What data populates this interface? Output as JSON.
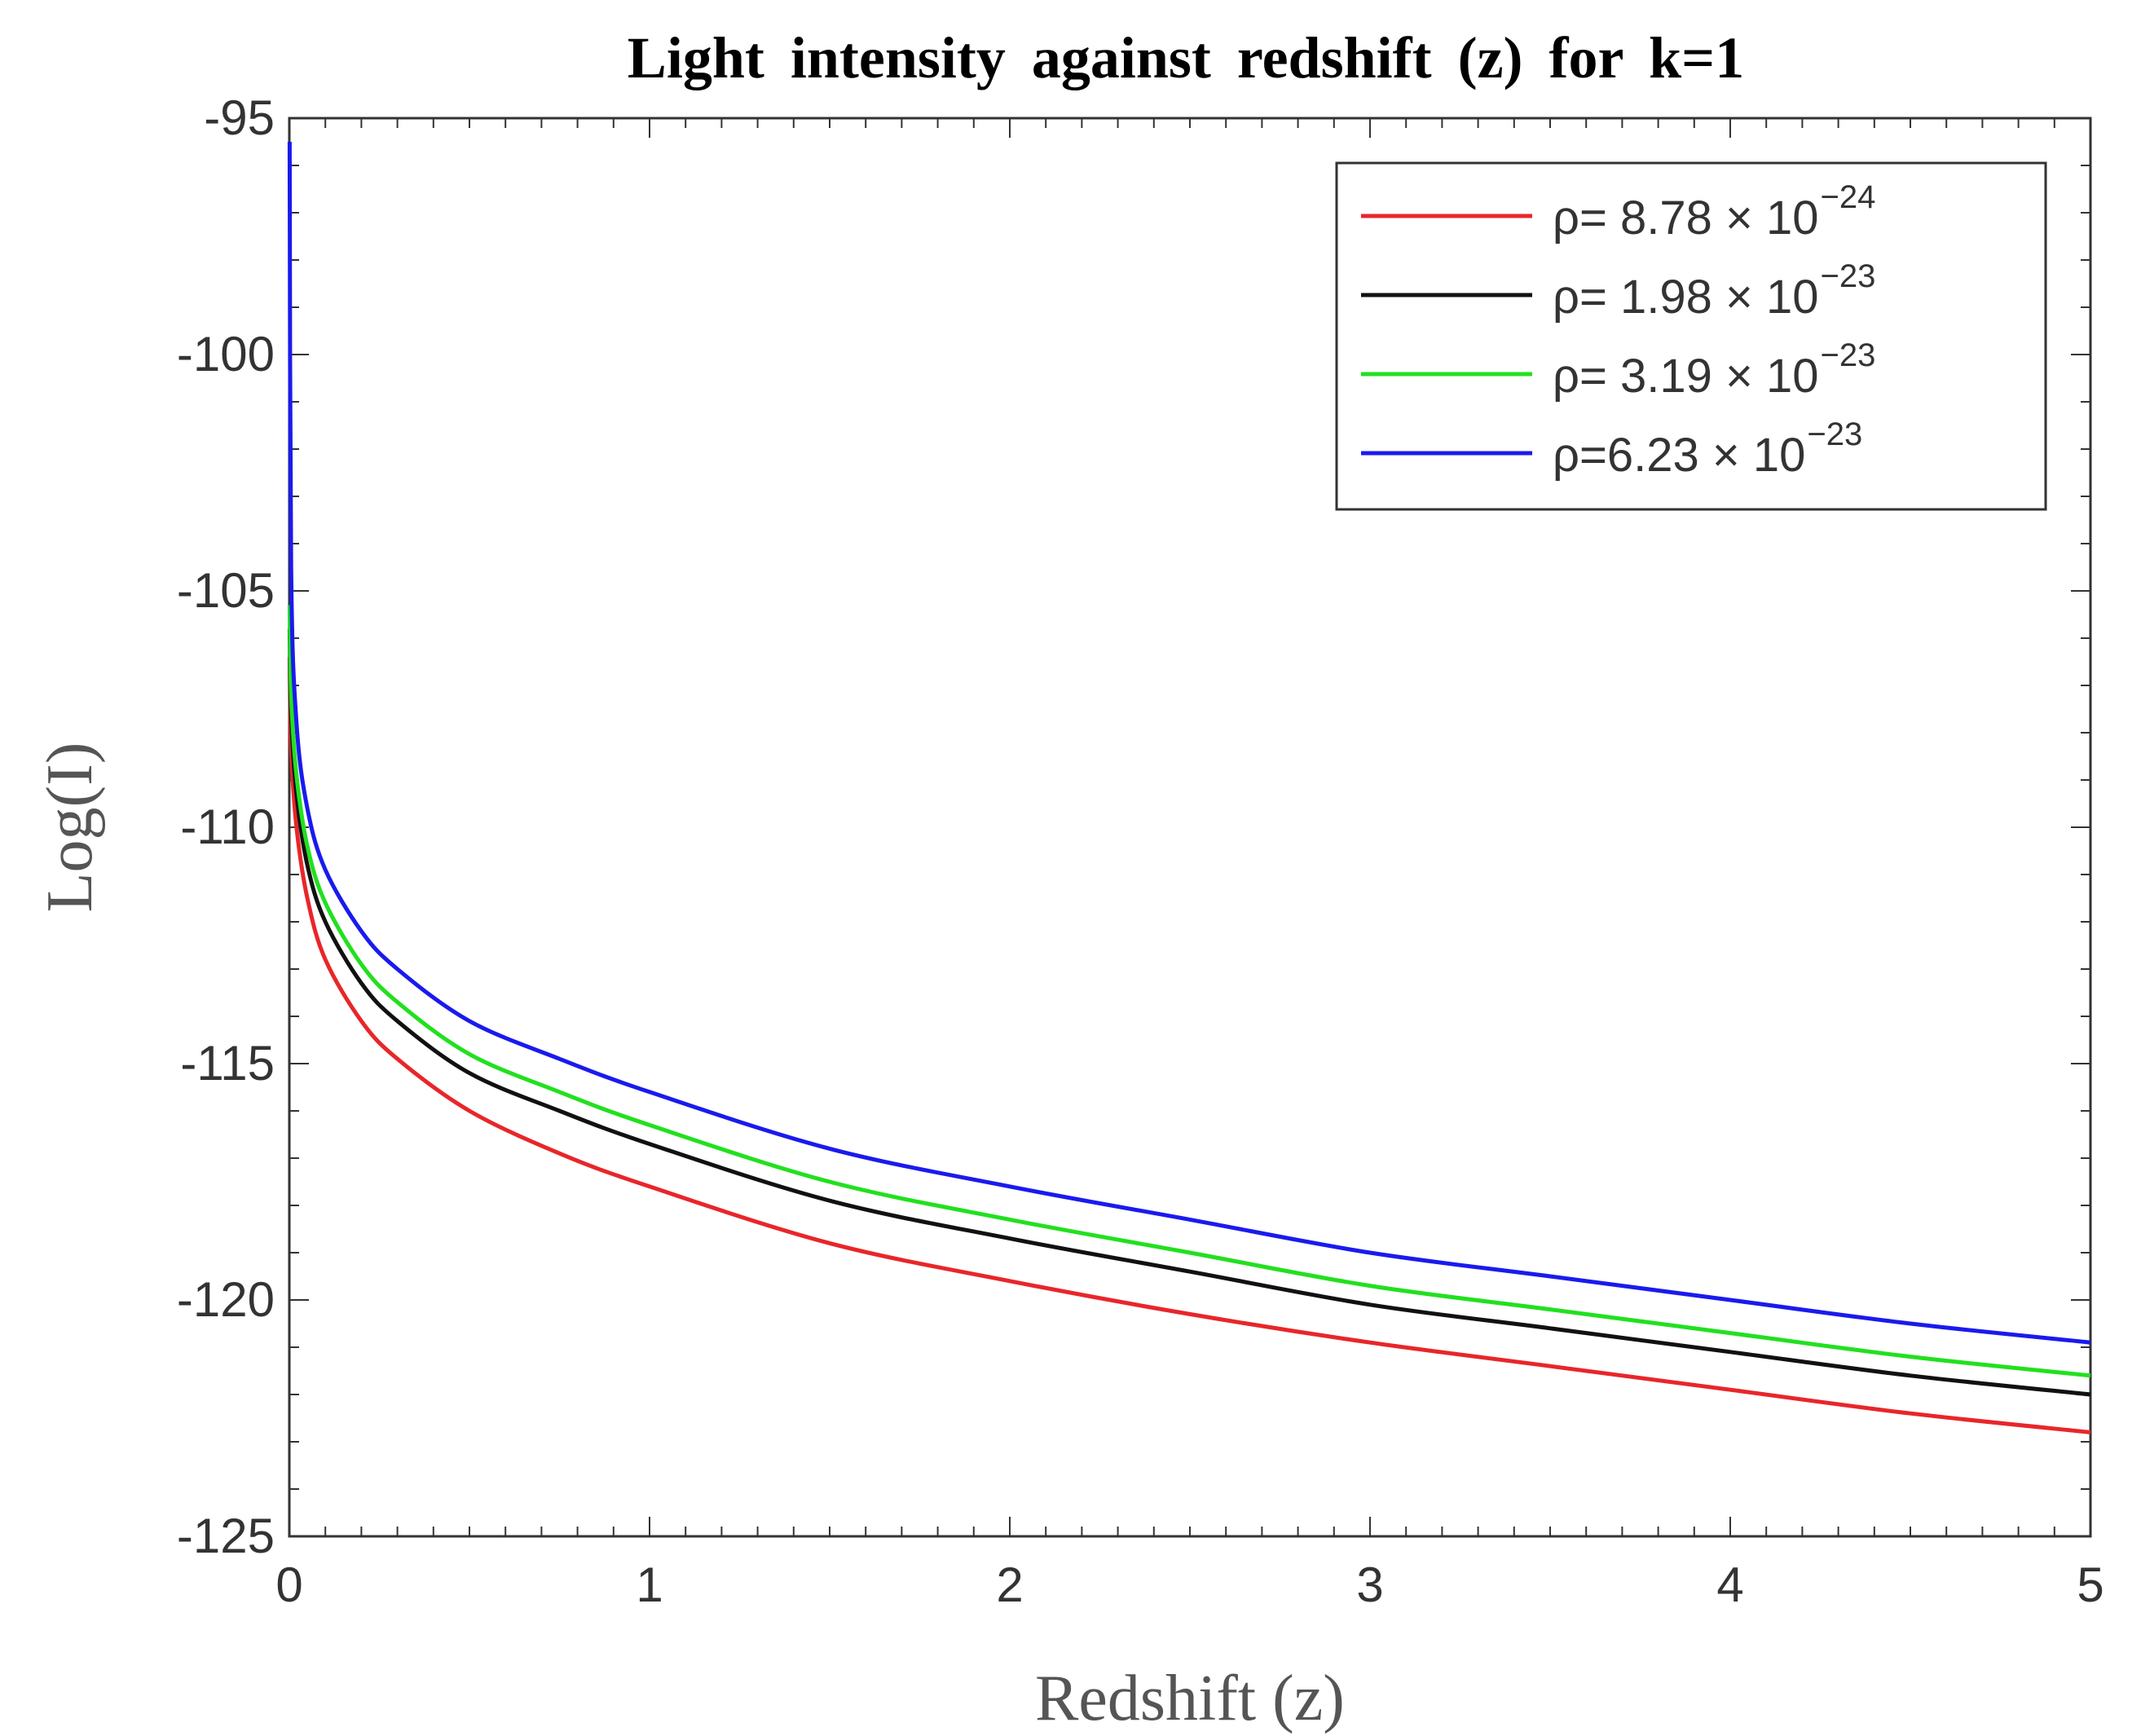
{
  "chart_data": {
    "type": "line",
    "title": "Light intensity against redshift (z) for k=1",
    "xlabel": "Redshift (z)",
    "ylabel": "Log(I)",
    "xlim": [
      0,
      5
    ],
    "ylim": [
      -125,
      -95
    ],
    "xticks": [
      0,
      1,
      2,
      3,
      4,
      5
    ],
    "yticks": [
      -95,
      -100,
      -105,
      -110,
      -115,
      -120,
      -125
    ],
    "xtick_labels": [
      "0",
      "1",
      "2",
      "3",
      "4",
      "5"
    ],
    "ytick_labels": [
      "-95",
      "-100",
      "-105",
      "-110",
      "-115",
      "-120",
      "-125"
    ],
    "grid": false,
    "legend_position": "top-right",
    "x": [
      0.001,
      0.005,
      0.02,
      0.05,
      0.1,
      0.2,
      0.3,
      0.5,
      0.75,
      1,
      1.5,
      2,
      2.5,
      3,
      3.5,
      4,
      4.5,
      5
    ],
    "series": [
      {
        "name": "ρ= 8.78 × 10^-24",
        "legend_main": "ρ=  8.78  ×  10",
        "legend_exp": "−24",
        "color": "#e8262a",
        "values": [
          -106.4,
          -108.3,
          -110.0,
          -111.5,
          -112.8,
          -114.1,
          -114.9,
          -116.0,
          -116.9,
          -117.6,
          -118.8,
          -119.6,
          -120.3,
          -120.9,
          -121.4,
          -121.9,
          -122.4,
          -122.8
        ]
      },
      {
        "name": "ρ= 1.98 × 10^-23",
        "legend_main": "ρ=  1.98  ×  10",
        "legend_exp": "−23",
        "color": "#111111",
        "values": [
          -105.8,
          -107.6,
          -109.3,
          -110.8,
          -112.0,
          -113.3,
          -114.1,
          -115.2,
          -116.0,
          -116.7,
          -117.9,
          -118.7,
          -119.4,
          -120.1,
          -120.6,
          -121.1,
          -121.6,
          -122.0
        ]
      },
      {
        "name": "ρ= 3.19 × 10^-23",
        "legend_main": "ρ=  3.19  ×  10",
        "legend_exp": "−23",
        "color": "#22e01f",
        "values": [
          -105.3,
          -107.2,
          -108.9,
          -110.4,
          -111.6,
          -112.9,
          -113.7,
          -114.8,
          -115.6,
          -116.3,
          -117.5,
          -118.3,
          -119.0,
          -119.7,
          -120.2,
          -120.7,
          -121.2,
          -121.6
        ]
      },
      {
        "name": "ρ=6.23 × 10^-23",
        "legend_main": "ρ=6.23  ×  10",
        "legend_exp": "−23",
        "color": "#1a1aee",
        "values": [
          -95.5,
          -104.5,
          -107.8,
          -109.6,
          -110.9,
          -112.2,
          -113.0,
          -114.1,
          -114.9,
          -115.6,
          -116.8,
          -117.6,
          -118.3,
          -119.0,
          -119.5,
          -120.0,
          -120.5,
          -120.9
        ]
      }
    ]
  }
}
